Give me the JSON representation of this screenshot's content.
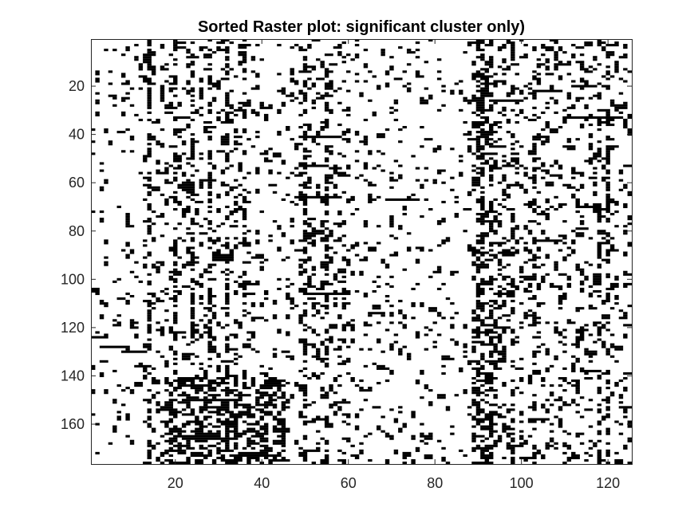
{
  "chart_data": {
    "type": "heatmap",
    "title": "Sorted Raster plot: significant cluster only)",
    "xlabel": "",
    "ylabel": "",
    "n_columns": 125,
    "n_rows": 176,
    "xlim": [
      0.5,
      125.5
    ],
    "ylim": [
      0.5,
      176.5
    ],
    "y_direction": "reversed",
    "x_ticks": [
      20,
      40,
      60,
      80,
      100,
      120
    ],
    "y_ticks": [
      20,
      40,
      60,
      80,
      100,
      120,
      140,
      160
    ],
    "x_tick_labels": [
      "20",
      "40",
      "60",
      "80",
      "100",
      "120"
    ],
    "y_tick_labels": [
      "20",
      "40",
      "60",
      "80",
      "100",
      "120",
      "140",
      "160"
    ],
    "colormap": {
      "inactive": "#ffffff",
      "active": "#000000"
    },
    "grid": false,
    "legend": "none",
    "column_activity_profile": {
      "description": "approximate fraction of active cells per column range",
      "segments": [
        {
          "columns": [
            1,
            12
          ],
          "rate": 0.05
        },
        {
          "columns": [
            13,
            17
          ],
          "rate": 0.12
        },
        {
          "columns": [
            18,
            36
          ],
          "rate": 0.16
        },
        {
          "columns": [
            37,
            48
          ],
          "rate": 0.1
        },
        {
          "columns": [
            49,
            60
          ],
          "rate": 0.16
        },
        {
          "columns": [
            61,
            88
          ],
          "rate": 0.08
        },
        {
          "columns": [
            89,
            96
          ],
          "rate": 0.28
        },
        {
          "columns": [
            97,
            125
          ],
          "rate": 0.14
        }
      ]
    },
    "dense_column_bands": [
      14,
      20,
      24,
      28,
      32,
      36,
      50,
      55,
      90,
      91,
      93,
      98,
      103,
      118,
      120
    ],
    "dense_cluster": {
      "columns": [
        18,
        45
      ],
      "rows": [
        141,
        176
      ],
      "rate": 0.45
    },
    "horizontal_segments": [
      {
        "row": 124,
        "start": 1,
        "end": 4
      },
      {
        "row": 128,
        "start": 3,
        "end": 9
      },
      {
        "row": 130,
        "start": 8,
        "end": 13
      },
      {
        "row": 136,
        "start": 11,
        "end": 14
      },
      {
        "row": 41,
        "start": 49,
        "end": 58
      },
      {
        "row": 53,
        "start": 49,
        "end": 55
      },
      {
        "row": 67,
        "start": 69,
        "end": 76
      },
      {
        "row": 66,
        "start": 48,
        "end": 58
      },
      {
        "row": 26,
        "start": 93,
        "end": 100
      },
      {
        "row": 20,
        "start": 112,
        "end": 117
      },
      {
        "row": 22,
        "start": 104,
        "end": 109
      },
      {
        "row": 33,
        "start": 112,
        "end": 123
      },
      {
        "row": 84,
        "start": 104,
        "end": 109
      },
      {
        "row": 106,
        "start": 50,
        "end": 60
      },
      {
        "row": 144,
        "start": 21,
        "end": 26
      },
      {
        "row": 150,
        "start": 22,
        "end": 30
      },
      {
        "row": 166,
        "start": 24,
        "end": 32
      },
      {
        "row": 138,
        "start": 114,
        "end": 118
      }
    ]
  }
}
